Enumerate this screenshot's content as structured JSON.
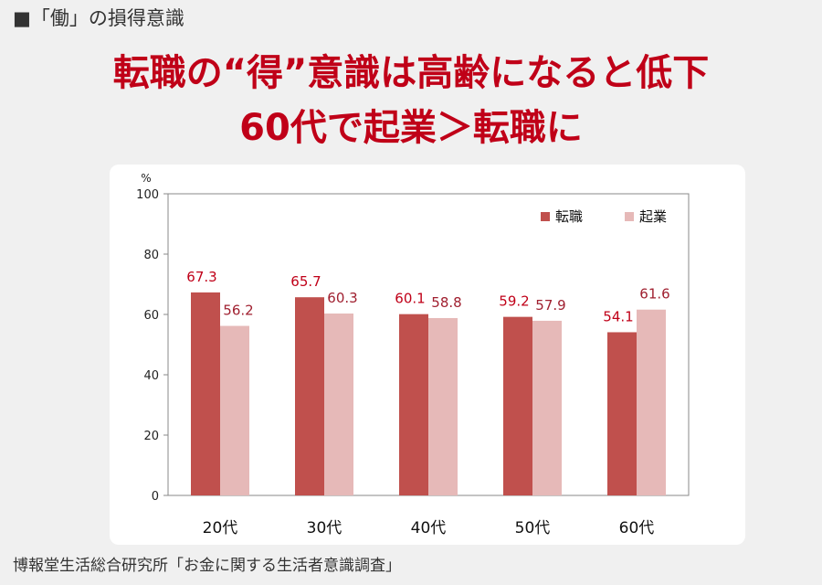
{
  "header": {
    "section_label": "■「働」の損得意識",
    "headline_line1": "転職の“得”意識は高齢になると低下",
    "headline_line2": "60代で起業＞転職に"
  },
  "footer": {
    "source": "博報堂生活総合研究所「お金に関する生活者意識調査」"
  },
  "colors": {
    "tenshoku": "#c0504d",
    "kigyo": "#e6b9b8",
    "label_tenshoku": "#c00018",
    "label_kigyo": "#a02030"
  },
  "chart_data": {
    "type": "bar",
    "categories": [
      "20代",
      "30代",
      "40代",
      "50代",
      "60代"
    ],
    "series": [
      {
        "name": "転職",
        "values": [
          67.3,
          65.7,
          60.1,
          59.2,
          54.1
        ]
      },
      {
        "name": "起業",
        "values": [
          56.2,
          60.3,
          58.8,
          57.9,
          61.6
        ]
      }
    ],
    "ylabel": "%",
    "ylim": [
      0,
      100
    ],
    "yticks": [
      0,
      20,
      40,
      60,
      80,
      100
    ],
    "grid": false,
    "legend": "top-right"
  }
}
